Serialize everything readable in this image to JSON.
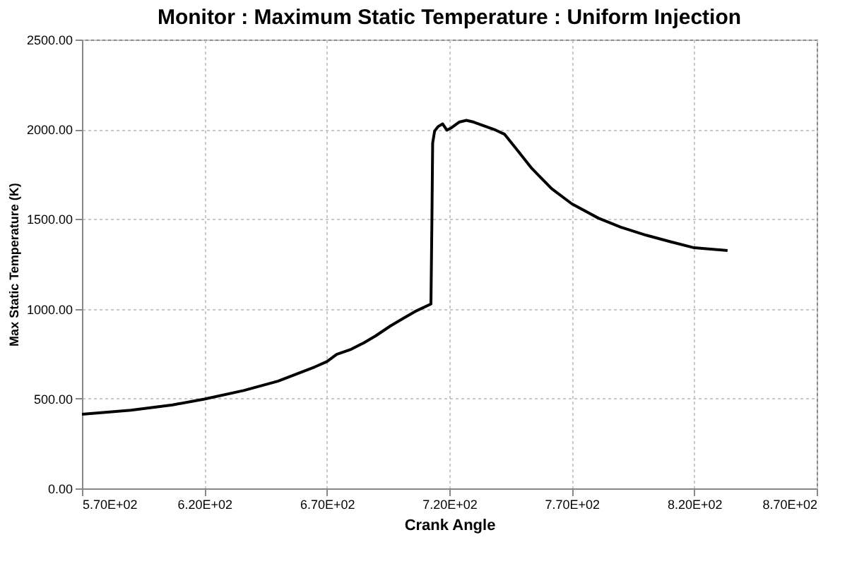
{
  "chart_data": {
    "type": "line",
    "title": "Monitor : Maximum Static Temperature :  Uniform Injection",
    "xlabel": "Crank Angle",
    "ylabel": "Max Static Temperature (K)",
    "x": [
      570,
      590,
      607,
      620,
      636,
      650,
      665,
      670,
      674,
      680,
      685,
      690,
      696,
      701,
      706,
      712.5,
      712.9,
      713.2,
      714,
      715.4,
      717.3,
      719,
      721,
      724,
      727,
      730,
      735,
      739,
      742.5,
      748,
      753.7,
      761.8,
      770,
      780.9,
      790,
      800.4,
      810,
      820,
      833.6
    ],
    "series": [
      {
        "color": "#000000",
        "values": [
          413,
          435,
          465,
          497,
          545,
          597,
          676,
          706,
          746,
          775,
          810,
          850,
          905,
          945,
          985,
          1027,
          1500,
          1923,
          1990,
          2015,
          2030,
          1995,
          2010,
          2040,
          2050,
          2040,
          2015,
          1995,
          1973,
          1880,
          1782,
          1669,
          1585,
          1505,
          1455,
          1410,
          1375,
          1340,
          1325
        ]
      }
    ],
    "xlim": [
      570,
      870
    ],
    "xticks": [
      {
        "value": 570,
        "label": "5.70E+02"
      },
      {
        "value": 620,
        "label": "6.20E+02"
      },
      {
        "value": 670,
        "label": "6.70E+02"
      },
      {
        "value": 720,
        "label": "7.20E+02"
      },
      {
        "value": 770,
        "label": "7.70E+02"
      },
      {
        "value": 820,
        "label": "8.20E+02"
      },
      {
        "value": 870,
        "label": "8.70E+02"
      }
    ],
    "ylim": [
      0,
      2500
    ],
    "yticks": [
      {
        "value": 0,
        "label": "0.00"
      },
      {
        "value": 500,
        "label": "500.00"
      },
      {
        "value": 1000,
        "label": "1000.00"
      },
      {
        "value": 1500,
        "label": "1500.00"
      },
      {
        "value": 2000,
        "label": "2000.00"
      },
      {
        "value": 2500,
        "label": "2500.00"
      }
    ],
    "grid": true,
    "legend": false,
    "marker": "none",
    "line_style": "solid"
  }
}
